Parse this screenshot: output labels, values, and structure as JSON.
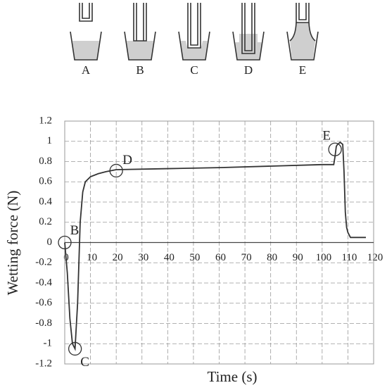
{
  "schematic": {
    "labels": [
      "A",
      "B",
      "C",
      "D",
      "E"
    ]
  },
  "chart_data": {
    "type": "line",
    "xlabel": "Time (s)",
    "ylabel": "Wetting force (N)",
    "x": [
      0,
      1,
      2,
      3,
      4,
      5,
      6,
      7,
      8,
      10,
      13,
      16,
      20,
      40,
      60,
      80,
      100,
      104.5,
      105,
      105.5,
      106,
      107,
      108,
      108.5,
      109,
      109.5,
      110,
      111,
      117
    ],
    "series": [
      {
        "name": "Wetting force",
        "color": "#333333",
        "values": [
          0,
          -0.3,
          -0.75,
          -1.0,
          -1.05,
          -0.6,
          0.2,
          0.5,
          0.6,
          0.65,
          0.68,
          0.7,
          0.72,
          0.73,
          0.74,
          0.755,
          0.77,
          0.77,
          0.85,
          0.95,
          0.97,
          0.99,
          0.97,
          0.7,
          0.3,
          0.15,
          0.1,
          0.05,
          0.05
        ]
      }
    ],
    "xlim": [
      0,
      120
    ],
    "xticks": [
      0,
      10,
      20,
      30,
      40,
      50,
      60,
      70,
      80,
      90,
      100,
      110,
      120
    ],
    "ylim": [
      -1.2,
      1.2
    ],
    "yticks": [
      1.2,
      1,
      0.8,
      0.6,
      0.4,
      0.2,
      0,
      -0.2,
      -0.4,
      -0.6,
      -0.8,
      -1,
      -1.2
    ],
    "grid": true,
    "annotations": [
      {
        "text": "B",
        "x": 0,
        "y": 0
      },
      {
        "text": "C",
        "x": 4,
        "y": -1.05
      },
      {
        "text": "D",
        "x": 20,
        "y": 0.71
      },
      {
        "text": "E",
        "x": 105,
        "y": 0.92
      }
    ]
  }
}
